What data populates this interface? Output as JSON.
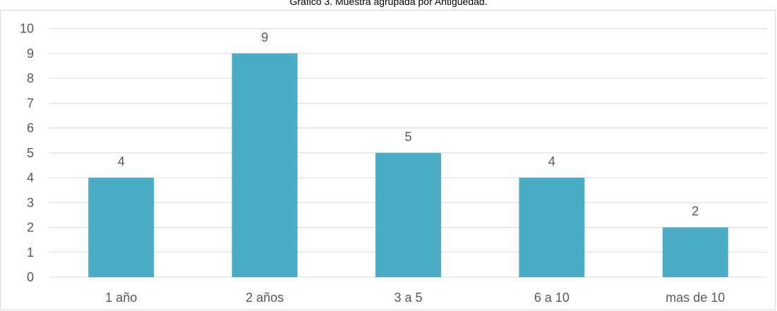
{
  "chart_data": {
    "type": "bar",
    "title": "Gráfico 3. Muestra agrupada por Antigüedad.",
    "categories": [
      "1 año",
      "2 años",
      "3 a 5",
      "6 a 10",
      "mas de 10"
    ],
    "values": [
      4,
      9,
      5,
      4,
      2
    ],
    "data_labels": [
      "4",
      "9",
      "5",
      "4",
      "2"
    ],
    "ylim": [
      0,
      10
    ],
    "y_ticks": [
      0,
      1,
      2,
      3,
      4,
      5,
      6,
      7,
      8,
      9,
      10
    ],
    "grid": true,
    "legend": "none",
    "bar_color": "#4bacc6",
    "grid_color": "#d9d9d9",
    "label_color": "#595959"
  }
}
